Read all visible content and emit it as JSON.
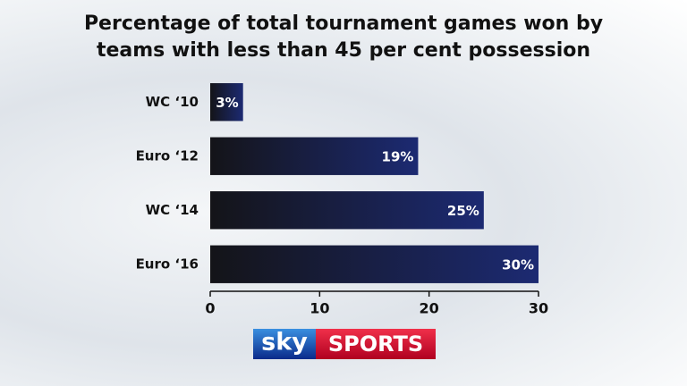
{
  "chart_data": {
    "type": "barh",
    "title": "Percentage of total tournament games won by teams with less than 45 per cent possession",
    "categories": [
      "WC ‘10",
      "Euro ‘12",
      "WC ‘14",
      "Euro ‘16"
    ],
    "values": [
      3,
      19,
      25,
      30
    ],
    "value_labels": [
      "3%",
      "19%",
      "25%",
      "30%"
    ],
    "color": "#1c2a72",
    "xlim": [
      0,
      30
    ],
    "xticks": [
      0,
      10,
      20,
      30
    ],
    "grid": false
  },
  "logo": {
    "sky": "sky",
    "sports": "SPORTS"
  }
}
